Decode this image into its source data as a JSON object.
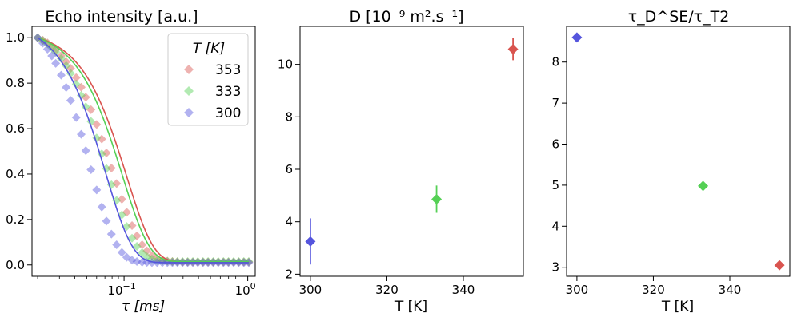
{
  "colors": {
    "c353": "#d9544f",
    "c333": "#55d055",
    "c300": "#5555dd"
  },
  "chart_data": [
    {
      "type": "line",
      "title": "Echo intensity [a.u.]",
      "xlabel": "τ [ms]",
      "ylabel": "",
      "xscale": "log",
      "xlim": [
        0.018,
        1.15
      ],
      "ylim": [
        -0.05,
        1.05
      ],
      "xticks": [
        {
          "value": 0.1,
          "base": "10",
          "exp": "−1"
        },
        {
          "value": 1,
          "base": "10",
          "exp": "0"
        }
      ],
      "yticks": [
        {
          "value": 0.0,
          "label": "0.0"
        },
        {
          "value": 0.2,
          "label": "0.2"
        },
        {
          "value": 0.4,
          "label": "0.4"
        },
        {
          "value": 0.6,
          "label": "0.6"
        },
        {
          "value": 0.8,
          "label": "0.8"
        },
        {
          "value": 1.0,
          "label": "1.0"
        }
      ],
      "legend": {
        "title": "T [K]",
        "position": "top-right"
      },
      "series": [
        {
          "name": "353",
          "color_key": "c353",
          "tau": 0.105,
          "floor": 0.013,
          "x": [
            0.02,
            0.022,
            0.024,
            0.026,
            0.028,
            0.031,
            0.034,
            0.037,
            0.041,
            0.045,
            0.049,
            0.054,
            0.06,
            0.066,
            0.072,
            0.079,
            0.087,
            0.096,
            0.105,
            0.116,
            0.127,
            0.14,
            0.153,
            0.168,
            0.185,
            0.204,
            0.224,
            0.246,
            0.27,
            0.297,
            0.327,
            0.36,
            0.395,
            0.435,
            0.478,
            0.526,
            0.578,
            0.636,
            0.699,
            0.769,
            0.846,
            0.93,
            1.02
          ],
          "y": [
            1.0,
            0.989,
            0.977,
            0.962,
            0.946,
            0.921,
            0.894,
            0.865,
            0.824,
            0.782,
            0.738,
            0.683,
            0.618,
            0.554,
            0.493,
            0.426,
            0.358,
            0.289,
            0.232,
            0.173,
            0.128,
            0.089,
            0.062,
            0.042,
            0.028,
            0.021,
            0.017,
            0.015,
            0.014,
            0.013,
            0.013,
            0.013,
            0.013,
            0.013,
            0.013,
            0.013,
            0.013,
            0.013,
            0.013,
            0.013,
            0.013,
            0.013,
            0.013
          ]
        },
        {
          "name": "333",
          "color_key": "c333",
          "tau": 0.097,
          "floor": 0.015,
          "x": [
            0.02,
            0.022,
            0.024,
            0.026,
            0.028,
            0.031,
            0.034,
            0.037,
            0.041,
            0.045,
            0.049,
            0.054,
            0.06,
            0.066,
            0.072,
            0.079,
            0.087,
            0.096,
            0.105,
            0.116,
            0.127,
            0.14,
            0.153,
            0.168,
            0.185,
            0.204,
            0.224,
            0.246,
            0.27,
            0.297,
            0.327,
            0.36,
            0.395,
            0.435,
            0.478,
            0.526,
            0.578,
            0.636,
            0.699,
            0.769,
            0.846,
            0.93,
            1.02
          ],
          "y": [
            1.0,
            0.987,
            0.973,
            0.956,
            0.937,
            0.908,
            0.877,
            0.843,
            0.795,
            0.746,
            0.696,
            0.632,
            0.559,
            0.489,
            0.424,
            0.353,
            0.284,
            0.22,
            0.169,
            0.118,
            0.082,
            0.054,
            0.036,
            0.026,
            0.02,
            0.017,
            0.016,
            0.015,
            0.015,
            0.015,
            0.015,
            0.015,
            0.015,
            0.015,
            0.015,
            0.015,
            0.015,
            0.015,
            0.015,
            0.015,
            0.015,
            0.015,
            0.015
          ]
        },
        {
          "name": "300",
          "color_key": "c300",
          "tau": 0.071,
          "floor": 0.01,
          "x": [
            0.02,
            0.022,
            0.024,
            0.026,
            0.028,
            0.031,
            0.034,
            0.037,
            0.041,
            0.045,
            0.049,
            0.054,
            0.06,
            0.066,
            0.072,
            0.079,
            0.087,
            0.096,
            0.105,
            0.116,
            0.127,
            0.14,
            0.153,
            0.168,
            0.185,
            0.204,
            0.224,
            0.246,
            0.27,
            0.297,
            0.327,
            0.36,
            0.395,
            0.435,
            0.478,
            0.526,
            0.578,
            0.636,
            0.699,
            0.769,
            0.846,
            0.93,
            1.02
          ],
          "y": [
            1.0,
            0.976,
            0.95,
            0.92,
            0.887,
            0.835,
            0.781,
            0.724,
            0.649,
            0.575,
            0.503,
            0.419,
            0.33,
            0.255,
            0.193,
            0.136,
            0.089,
            0.055,
            0.034,
            0.021,
            0.015,
            0.012,
            0.011,
            0.01,
            0.01,
            0.01,
            0.01,
            0.01,
            0.01,
            0.01,
            0.01,
            0.01,
            0.01,
            0.01,
            0.01,
            0.01,
            0.01,
            0.01,
            0.01,
            0.01,
            0.01,
            0.01,
            0.01
          ]
        }
      ]
    },
    {
      "type": "scatter",
      "title": "D [10⁻⁹ m².s⁻¹]",
      "xlabel": "T [K]",
      "ylabel": "",
      "xlim": [
        297.3,
        355.7
      ],
      "ylim": [
        1.92,
        11.45
      ],
      "xticks": [
        {
          "value": 300,
          "label": "300"
        },
        {
          "value": 320,
          "label": "320"
        },
        {
          "value": 340,
          "label": "340"
        }
      ],
      "yticks": [
        {
          "value": 2,
          "label": "2"
        },
        {
          "value": 4,
          "label": "4"
        },
        {
          "value": 6,
          "label": "6"
        },
        {
          "value": 8,
          "label": "8"
        },
        {
          "value": 10,
          "label": "10"
        }
      ],
      "points": [
        {
          "x": 300,
          "y": 3.25,
          "err": 0.88,
          "color_key": "c300"
        },
        {
          "x": 333,
          "y": 4.86,
          "err": 0.52,
          "color_key": "c333"
        },
        {
          "x": 353,
          "y": 10.58,
          "err": 0.42,
          "color_key": "c353"
        }
      ]
    },
    {
      "type": "scatter",
      "title": "τ_D^SE/τ_T2",
      "xlabel": "T [K]",
      "ylabel": "",
      "xlim": [
        297.3,
        355.7
      ],
      "ylim": [
        2.78,
        8.87
      ],
      "xticks": [
        {
          "value": 300,
          "label": "300"
        },
        {
          "value": 320,
          "label": "320"
        },
        {
          "value": 340,
          "label": "340"
        }
      ],
      "yticks": [
        {
          "value": 3,
          "label": "3"
        },
        {
          "value": 4,
          "label": "4"
        },
        {
          "value": 5,
          "label": "5"
        },
        {
          "value": 6,
          "label": "6"
        },
        {
          "value": 7,
          "label": "7"
        },
        {
          "value": 8,
          "label": "8"
        }
      ],
      "points": [
        {
          "x": 300,
          "y": 8.6,
          "color_key": "c300"
        },
        {
          "x": 333,
          "y": 4.98,
          "color_key": "c333"
        },
        {
          "x": 353,
          "y": 3.05,
          "color_key": "c353"
        }
      ]
    }
  ]
}
